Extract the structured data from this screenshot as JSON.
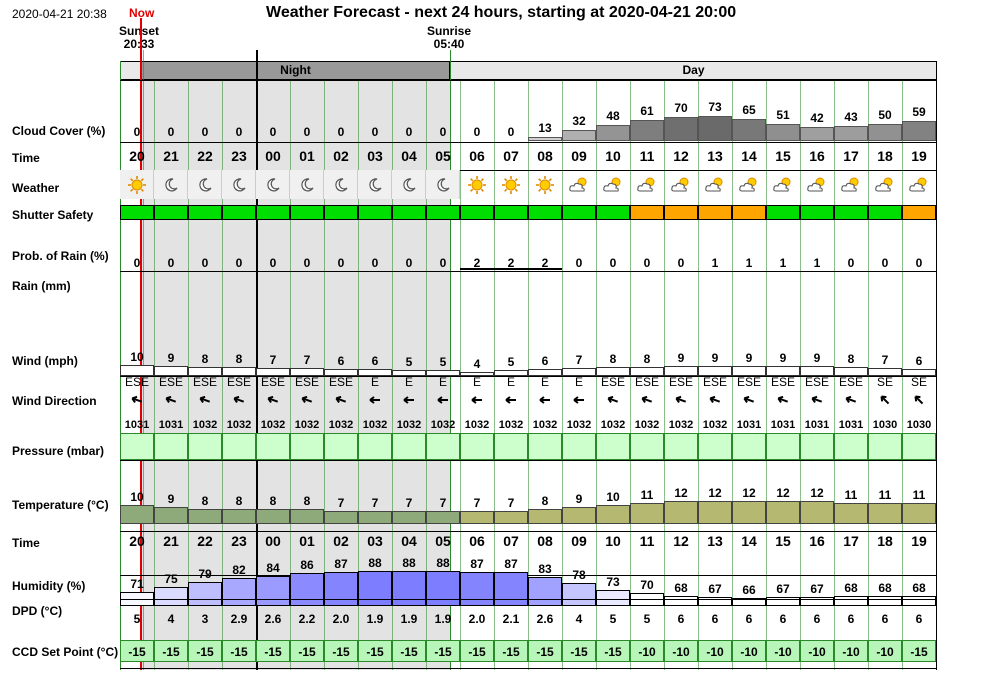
{
  "header": {
    "datetime": "2020-04-21 20:38",
    "now_label": "Now",
    "title": "Weather Forecast - next 24 hours, starting at 2020-04-21 20:00",
    "sunset": "Sunset",
    "sunset_time": "20:33",
    "sunrise": "Sunrise",
    "sunrise_time": "05:40",
    "night_label": "Night",
    "day_label": "Day"
  },
  "labels": {
    "cloud": "Cloud Cover (%)",
    "time": "Time",
    "weather": "Weather",
    "shutter": "Shutter Safety",
    "prob_rain": "Prob. of Rain (%)",
    "rain": "Rain (mm)",
    "wind": "Wind (mph)",
    "wind_dir": "Wind Direction",
    "pressure": "Pressure (mbar)",
    "temperature": "Temperature (°C)",
    "time2": "Time",
    "humidity": "Humidity (%)",
    "dpd": "DPD (°C)",
    "ccd": "CCD Set Point (°C)"
  },
  "hours": [
    "20",
    "21",
    "22",
    "23",
    "00",
    "01",
    "02",
    "03",
    "04",
    "05",
    "06",
    "07",
    "08",
    "09",
    "10",
    "11",
    "12",
    "13",
    "14",
    "15",
    "16",
    "17",
    "18",
    "19"
  ],
  "is_night": [
    true,
    true,
    true,
    true,
    true,
    true,
    true,
    true,
    true,
    true,
    false,
    false,
    false,
    false,
    false,
    false,
    false,
    false,
    false,
    false,
    false,
    false,
    false,
    false
  ],
  "cloud_cover": [
    0,
    0,
    0,
    0,
    0,
    0,
    0,
    0,
    0,
    0,
    0,
    0,
    13,
    32,
    48,
    61,
    70,
    73,
    65,
    51,
    42,
    43,
    50,
    59
  ],
  "weather_icons": [
    "sun-icon",
    "moon-icon",
    "moon-icon",
    "moon-icon",
    "moon-icon",
    "moon-icon",
    "moon-icon",
    "moon-icon",
    "moon-icon",
    "moon-icon",
    "sun-icon",
    "sun-icon",
    "sun-icon",
    "partly-cloudy-icon",
    "partly-cloudy-icon",
    "partly-cloudy-icon",
    "partly-cloudy-icon",
    "partly-cloudy-icon",
    "partly-cloudy-icon",
    "partly-cloudy-icon",
    "partly-cloudy-icon",
    "partly-cloudy-icon",
    "partly-cloudy-icon",
    "partly-cloudy-icon"
  ],
  "shutter_safety": [
    "safe",
    "safe",
    "safe",
    "safe",
    "safe",
    "safe",
    "safe",
    "safe",
    "safe",
    "safe",
    "safe",
    "safe",
    "safe",
    "safe",
    "safe",
    "caution",
    "caution",
    "caution",
    "caution",
    "safe",
    "safe",
    "safe",
    "safe",
    "caution"
  ],
  "shutter_colors": {
    "safe": "#00dd00",
    "caution": "#ffa500"
  },
  "prob_rain": [
    "0",
    "0",
    "0",
    "0",
    "0",
    "0",
    "0",
    "0",
    "0",
    "0",
    "2",
    "2",
    "2",
    "0",
    "0",
    "0",
    "0",
    "1",
    "1",
    "1",
    "1",
    "0",
    "0",
    "0"
  ],
  "wind": [
    10,
    9,
    8,
    8,
    7,
    7,
    6,
    6,
    5,
    5,
    4,
    5,
    6,
    7,
    8,
    8,
    9,
    9,
    9,
    9,
    9,
    8,
    7,
    6
  ],
  "wind_dir": [
    "ESE",
    "ESE",
    "ESE",
    "ESE",
    "ESE",
    "ESE",
    "ESE",
    "E",
    "E",
    "E",
    "E",
    "E",
    "E",
    "E",
    "ESE",
    "ESE",
    "ESE",
    "ESE",
    "ESE",
    "ESE",
    "ESE",
    "ESE",
    "SE",
    "SE"
  ],
  "pressure": [
    "1031",
    "1031",
    "1032",
    "1032",
    "1032",
    "1032",
    "1032",
    "1032",
    "1032",
    "1032",
    "1032",
    "1032",
    "1032",
    "1032",
    "1032",
    "1032",
    "1032",
    "1032",
    "1031",
    "1031",
    "1031",
    "1031",
    "1030",
    "1030"
  ],
  "temperature": [
    10,
    9,
    8,
    8,
    8,
    8,
    7,
    7,
    7,
    7,
    7,
    7,
    8,
    9,
    10,
    11,
    12,
    12,
    12,
    12,
    12,
    11,
    11,
    11
  ],
  "humidity": [
    71,
    75,
    79,
    82,
    84,
    86,
    87,
    88,
    88,
    88,
    87,
    87,
    83,
    78,
    73,
    70,
    68,
    67,
    66,
    67,
    67,
    68,
    68,
    68
  ],
  "dpd": [
    "5",
    "4",
    "3",
    "2.9",
    "2.6",
    "2.2",
    "2.0",
    "1.9",
    "1.9",
    "1.9",
    "2.0",
    "2.1",
    "2.6",
    "4",
    "5",
    "5",
    "6",
    "6",
    "6",
    "6",
    "6",
    "6",
    "6",
    "6"
  ],
  "ccd": [
    "-15",
    "-15",
    "-15",
    "-15",
    "-15",
    "-15",
    "-15",
    "-15",
    "-15",
    "-15",
    "-15",
    "-15",
    "-15",
    "-15",
    "-15",
    "-10",
    "-10",
    "-10",
    "-10",
    "-10",
    "-10",
    "-10",
    "-10",
    "-15"
  ],
  "colors": {
    "night_band": "#e3e3e3",
    "pressure_fill": "#ccffcc",
    "ccd_fill": "#b8f5b8",
    "now_line": "#e00000",
    "cloud_dark": "#808080",
    "cloud_light": "#c8c8c8"
  }
}
